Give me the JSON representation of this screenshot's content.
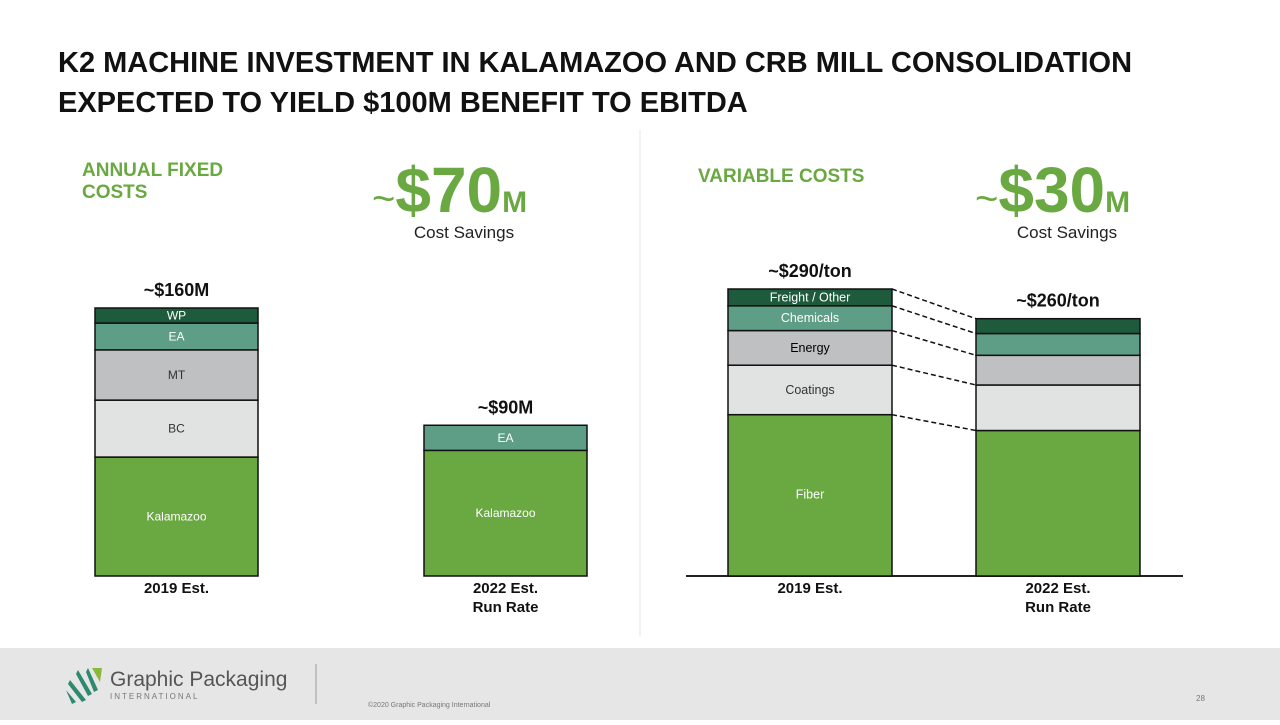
{
  "title": [
    "K2 MACHINE INVESTMENT IN KALAMAZOO AND CRB MILL CONSOLIDATION",
    "EXPECTED TO YIELD $100M BENEFIT TO EBITDA"
  ],
  "footer": {
    "logo_name": "Graphic Packaging",
    "logo_sub": "INTERNATIONAL",
    "copyright": "©2020 Graphic Packaging International",
    "page": "28"
  },
  "chart_data": [
    {
      "type": "stacked-bar",
      "section_title": [
        "ANNUAL FIXED",
        "COSTS"
      ],
      "savings": {
        "approx": "~",
        "amount": "$70",
        "unit": "M"
      },
      "savings_label": "Cost Savings",
      "categories": [
        [
          "2019 Est."
        ],
        [
          "2022 Est.",
          "Run Rate"
        ]
      ],
      "total_labels": [
        "~$160M",
        "~$90M"
      ],
      "segment_labels": "all",
      "connectors": false,
      "series": [
        {
          "name": "Kalamazoo",
          "color": "#6aa842",
          "text_color": "#ffffff",
          "values": [
            71,
            75
          ]
        },
        {
          "name": "BC",
          "color": "#e1e2e2",
          "text_color": "#333333",
          "values": [
            34,
            null
          ]
        },
        {
          "name": "MT",
          "color": "#bfc0c2",
          "text_color": "#333333",
          "values": [
            30,
            null
          ]
        },
        {
          "name": "EA",
          "color": "#5e9e86",
          "text_color": "#ffffff",
          "values": [
            16,
            15
          ]
        },
        {
          "name": "WP",
          "color": "#1e5a3c",
          "text_color": "#ffffff",
          "values": [
            9,
            null
          ]
        }
      ]
    },
    {
      "type": "stacked-bar",
      "section_title": [
        "VARIABLE COSTS"
      ],
      "savings": {
        "approx": "~",
        "amount": "$30",
        "unit": "M"
      },
      "savings_label": "Cost Savings",
      "categories": [
        [
          "2019 Est."
        ],
        [
          "2022 Est.",
          "Run Rate"
        ]
      ],
      "total_labels": [
        "~$290/ton",
        "~$260/ton"
      ],
      "segment_labels": "first",
      "connectors": true,
      "series": [
        {
          "name": "Fiber",
          "color": "#6aa842",
          "text_color": "#ffffff",
          "values": [
            163,
            147
          ]
        },
        {
          "name": "Coatings",
          "color": "#e1e2e2",
          "text_color": "#333333",
          "values": [
            50,
            46
          ]
        },
        {
          "name": "Energy",
          "color": "#bfc0c2",
          "text_color": "#000000",
          "values": [
            35,
            30
          ]
        },
        {
          "name": "Chemicals",
          "color": "#5e9e86",
          "text_color": "#ffffff",
          "values": [
            25,
            22
          ]
        },
        {
          "name": "Freight / Other",
          "color": "#1e5a3c",
          "text_color": "#ffffff",
          "values": [
            17,
            15
          ]
        }
      ]
    }
  ]
}
